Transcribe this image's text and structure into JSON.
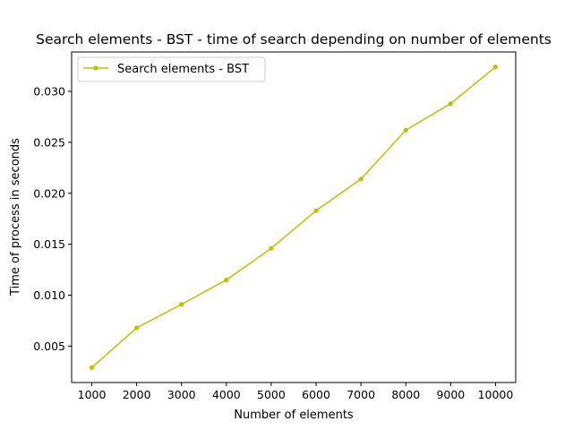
{
  "chart_data": {
    "type": "line",
    "title": "Search elements - BST - time of search depending on number of elements",
    "xlabel": "Number of elements",
    "ylabel": "Time of process in seconds",
    "x": [
      1000,
      2000,
      3000,
      4000,
      5000,
      6000,
      7000,
      8000,
      9000,
      10000
    ],
    "series": [
      {
        "name": "Search elements - BST",
        "color": "#bfbf00",
        "marker": "circle",
        "values": [
          0.0029,
          0.0068,
          0.0091,
          0.0115,
          0.0146,
          0.0183,
          0.0214,
          0.0262,
          0.0288,
          0.0324
        ]
      }
    ],
    "xticks": [
      1000,
      2000,
      3000,
      4000,
      5000,
      6000,
      7000,
      8000,
      9000,
      10000
    ],
    "xtick_labels": [
      "1000",
      "2000",
      "3000",
      "4000",
      "5000",
      "6000",
      "7000",
      "8000",
      "9000",
      "10000"
    ],
    "yticks": [
      0.005,
      0.01,
      0.015,
      0.02,
      0.025,
      0.03
    ],
    "ytick_labels": [
      "0.005",
      "0.010",
      "0.015",
      "0.020",
      "0.025",
      "0.030"
    ],
    "xlim": [
      550,
      10450
    ],
    "ylim": [
      0.00143,
      0.03387
    ],
    "grid": false,
    "legend_position": "upper-left"
  }
}
